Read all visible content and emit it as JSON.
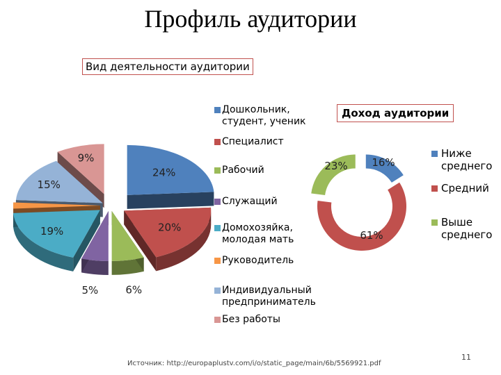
{
  "page": {
    "title": "Профиль аудитории",
    "source": "Источник: http://europaplustv.com/i/o/static_page/main/6b/5569921.pdf",
    "page_number": "11"
  },
  "chart_data": [
    {
      "type": "pie",
      "title": "Вид деятельности аудитории",
      "categories": [
        "Дошкольник, студент, ученик",
        "Специалист",
        "Рабочий",
        "Служащий",
        "Домохозяйка, молодая мать",
        "Руководитель",
        "Индивидуальный предприниматель",
        "Без работы"
      ],
      "values": [
        24,
        20,
        6,
        5,
        19,
        2,
        15,
        9
      ],
      "value_labels": [
        "24%",
        "20%",
        "6%",
        "5%",
        "19%",
        "2%",
        "15%",
        "9%"
      ],
      "colors": [
        "#4f81bd",
        "#c0504d",
        "#9bbb59",
        "#8064a2",
        "#4bacc6",
        "#f79646",
        "#95b3d7",
        "#d99694"
      ],
      "legend_position": "right"
    },
    {
      "type": "pie",
      "subtype": "doughnut",
      "title": "Доход аудитории",
      "categories": [
        "Ниже среднего",
        "Средний",
        "Выше среднего"
      ],
      "values": [
        16,
        61,
        23
      ],
      "value_labels": [
        "16%",
        "61%",
        "23%"
      ],
      "colors": [
        "#4f81bd",
        "#c0504d",
        "#9bbb59"
      ],
      "legend_position": "right"
    }
  ]
}
